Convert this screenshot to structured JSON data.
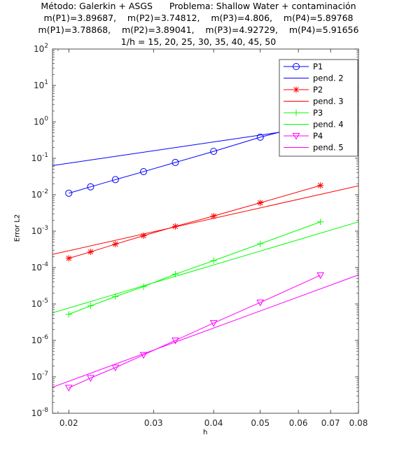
{
  "chart_data": {
    "type": "line",
    "title_lines": [
      "Método: Galerkin + ASGS      Problema: Shallow Water + contaminación",
      "m(P1)=3.89687,    m(P2)=3.74812,    m(P3)=4.806,    m(P4)=5.89768",
      "m(P1)=3.78868,    m(P2)=3.89041,    m(P3)=4.92729,    m(P4)=5.91656",
      "1/h = 15, 20, 25, 30, 35, 40, 45, 50"
    ],
    "xlabel": "h",
    "ylabel": "Error L2",
    "xscale": "log",
    "yscale": "log",
    "xlim": [
      0.0185,
      0.08
    ],
    "ylim": [
      1e-08,
      100
    ],
    "xticks": [
      {
        "v": 0.02,
        "label": "0.02"
      },
      {
        "v": 0.03,
        "label": "0.03"
      },
      {
        "v": 0.04,
        "label": "0.04"
      },
      {
        "v": 0.05,
        "label": "0.05"
      },
      {
        "v": 0.06,
        "label": "0.06"
      },
      {
        "v": 0.07,
        "label": "0.07"
      },
      {
        "v": 0.08,
        "label": "0.08"
      }
    ],
    "yticks": [
      {
        "exp": -8,
        "base": "10",
        "sup": "-8"
      },
      {
        "exp": -7,
        "base": "10",
        "sup": "-7"
      },
      {
        "exp": -6,
        "base": "10",
        "sup": "-6"
      },
      {
        "exp": -5,
        "base": "10",
        "sup": "-5"
      },
      {
        "exp": -4,
        "base": "10",
        "sup": "-4"
      },
      {
        "exp": -3,
        "base": "10",
        "sup": "-3"
      },
      {
        "exp": -2,
        "base": "10",
        "sup": "-2"
      },
      {
        "exp": -1,
        "base": "10",
        "sup": "-1"
      },
      {
        "exp": 0,
        "base": "10",
        "sup": "0"
      },
      {
        "exp": 1,
        "base": "10",
        "sup": "1"
      },
      {
        "exp": 2,
        "base": "10",
        "sup": "2"
      }
    ],
    "legend_position": "top-right",
    "colors": {
      "P1": "#0000ff",
      "P2": "#ff0000",
      "P3": "#00ff00",
      "P4": "#ff00ff"
    },
    "series": [
      {
        "name": "P1",
        "kind": "data",
        "marker": "circle",
        "color": "#0000ff",
        "x": [
          0.02,
          0.0222,
          0.025,
          0.0286,
          0.0333,
          0.04,
          0.05,
          0.0667
        ],
        "y": [
          0.011,
          0.0165,
          0.026,
          0.043,
          0.077,
          0.155,
          0.38,
          1.02
        ]
      },
      {
        "name": "pend. 2",
        "kind": "reference",
        "color": "#0000ff",
        "x": [
          0.0185,
          0.08
        ],
        "y": [
          0.063,
          1.08
        ]
      },
      {
        "name": "P2",
        "kind": "data",
        "marker": "asterisk",
        "color": "#ff0000",
        "x": [
          0.02,
          0.0222,
          0.025,
          0.0286,
          0.0333,
          0.04,
          0.05,
          0.0667
        ],
        "y": [
          0.00018,
          0.00027,
          0.00044,
          0.00075,
          0.00135,
          0.0026,
          0.006,
          0.018
        ]
      },
      {
        "name": "pend. 3",
        "kind": "reference",
        "color": "#ff0000",
        "x": [
          0.0185,
          0.08
        ],
        "y": [
          0.00023,
          0.0175
        ]
      },
      {
        "name": "P3",
        "kind": "data",
        "marker": "plus",
        "color": "#00ff00",
        "x": [
          0.02,
          0.0222,
          0.025,
          0.0286,
          0.0333,
          0.04,
          0.05,
          0.0667
        ],
        "y": [
          5.2e-06,
          8.9e-06,
          1.6e-05,
          3e-05,
          6.6e-05,
          0.000155,
          0.00045,
          0.0018
        ]
      },
      {
        "name": "pend. 4",
        "kind": "reference",
        "color": "#00ff00",
        "x": [
          0.0185,
          0.08
        ],
        "y": [
          5.7e-06,
          0.0018
        ]
      },
      {
        "name": "P4",
        "kind": "data",
        "marker": "triangle-down",
        "color": "#ff00ff",
        "x": [
          0.02,
          0.0222,
          0.025,
          0.0286,
          0.0333,
          0.04,
          0.05,
          0.0667
        ],
        "y": [
          5e-08,
          9.3e-08,
          1.8e-07,
          4e-07,
          1e-06,
          3e-06,
          1.1e-05,
          6.2e-05
        ]
      },
      {
        "name": "pend. 5",
        "kind": "reference",
        "color": "#ff00ff",
        "x": [
          0.0185,
          0.08
        ],
        "y": [
          5.2e-08,
          6.3e-05
        ]
      }
    ]
  }
}
